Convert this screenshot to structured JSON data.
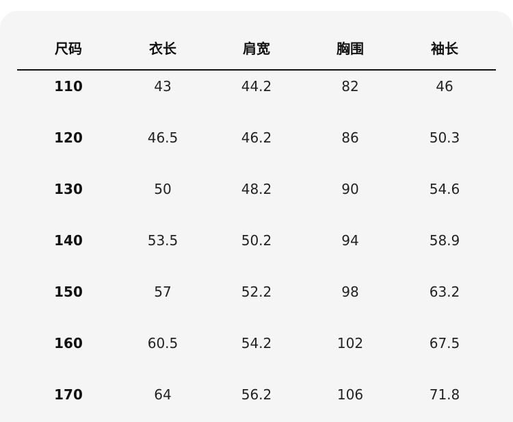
{
  "table": {
    "headers": [
      "尺码",
      "衣长",
      "肩宽",
      "胸围",
      "袖长"
    ],
    "rows": [
      [
        "110",
        "43",
        "44.2",
        "82",
        "46"
      ],
      [
        "120",
        "46.5",
        "46.2",
        "86",
        "50.3"
      ],
      [
        "130",
        "50",
        "48.2",
        "90",
        "54.6"
      ],
      [
        "140",
        "53.5",
        "50.2",
        "94",
        "58.9"
      ],
      [
        "150",
        "57",
        "52.2",
        "98",
        "63.2"
      ],
      [
        "160",
        "60.5",
        "54.2",
        "102",
        "67.5"
      ],
      [
        "170",
        "64",
        "56.2",
        "106",
        "71.8"
      ]
    ]
  }
}
